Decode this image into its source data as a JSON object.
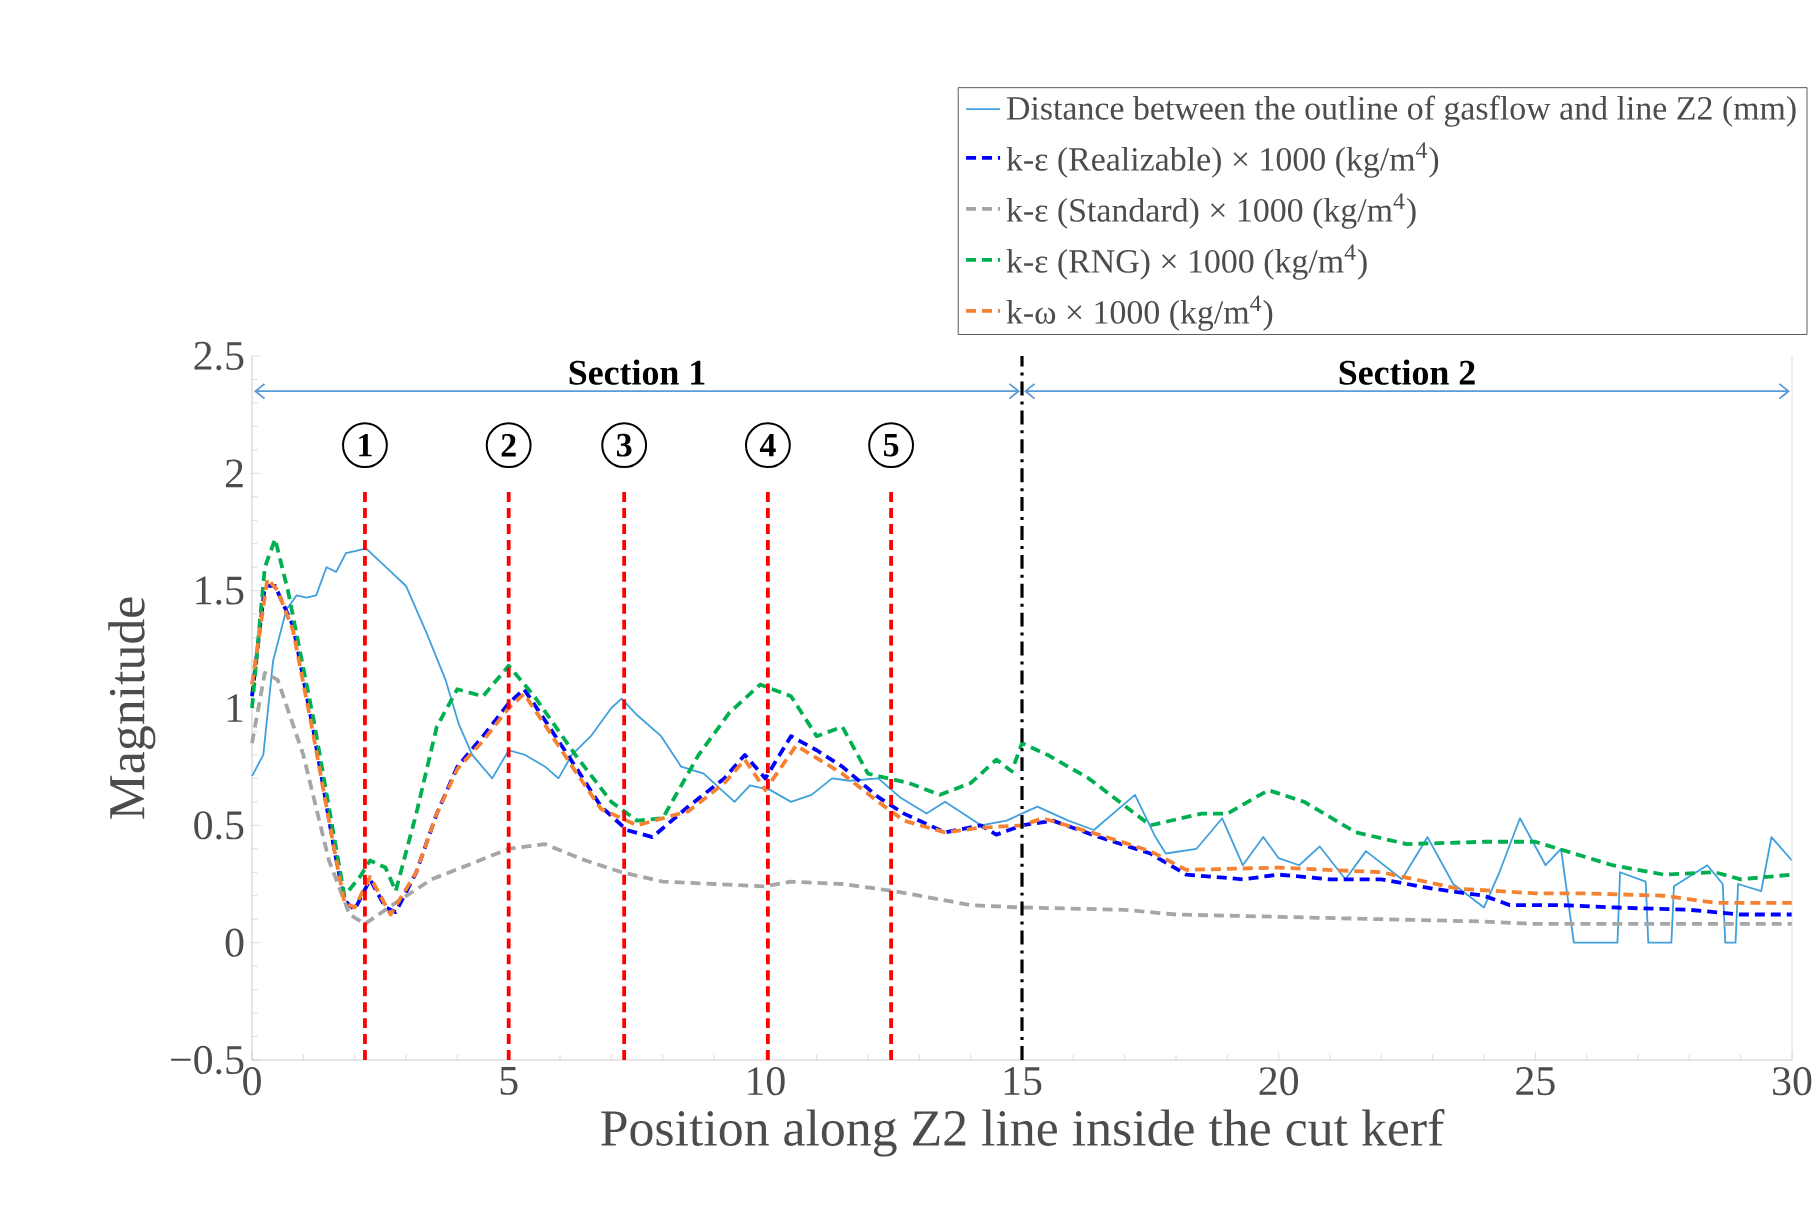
{
  "chart_data": {
    "type": "line",
    "xlabel": "Position along Z2 line inside the cut kerf",
    "ylabel": "Magnitude",
    "xlim": [
      0,
      30
    ],
    "ylim": [
      -0.5,
      2.5
    ],
    "xticks": [
      0,
      5,
      10,
      15,
      20,
      25,
      30
    ],
    "yticks": [
      {
        "value": -0.5,
        "label": "−0.5"
      },
      0,
      0.5,
      1,
      1.5,
      2,
      2.5
    ],
    "legend": "top right",
    "series": [
      {
        "name": "Distance between the outline of gasflow and line Z2 (mm)",
        "color": "#3fa0dc",
        "line_style": "solid",
        "x": [
          0,
          0.22,
          0.41,
          0.67,
          0.87,
          1.06,
          1.25,
          1.45,
          1.64,
          1.83,
          2.03,
          2.22,
          2.61,
          3.0,
          3.4,
          3.77,
          4.03,
          4.29,
          4.68,
          5.0,
          5.32,
          5.71,
          5.97,
          6.23,
          6.6,
          7.0,
          7.2,
          7.5,
          7.97,
          8.36,
          8.8,
          9.4,
          9.7,
          10.1,
          10.5,
          10.9,
          11.3,
          11.65,
          12.2,
          12.62,
          13.14,
          13.5,
          14.2,
          14.7,
          15.3,
          15.9,
          16.4,
          17.2,
          17.6,
          17.8,
          18.4,
          18.9,
          19.3,
          19.7,
          20.0,
          20.4,
          20.8,
          21.3,
          21.7,
          22.4,
          22.9,
          23.4,
          24.0,
          24.3,
          24.7,
          25.2,
          25.5,
          25.75,
          26.6,
          26.65,
          27.15,
          27.2,
          27.65,
          27.7,
          28.35,
          28.65,
          28.7,
          28.9,
          28.95,
          29.4,
          29.6,
          30
        ],
        "values": [
          0.71,
          0.8,
          1.2,
          1.42,
          1.48,
          1.47,
          1.48,
          1.6,
          1.58,
          1.66,
          1.67,
          1.68,
          1.6,
          1.52,
          1.32,
          1.12,
          0.93,
          0.8,
          0.7,
          0.82,
          0.8,
          0.75,
          0.7,
          0.8,
          0.88,
          1.0,
          1.04,
          0.97,
          0.88,
          0.75,
          0.72,
          0.6,
          0.67,
          0.65,
          0.6,
          0.63,
          0.7,
          0.69,
          0.7,
          0.62,
          0.55,
          0.6,
          0.5,
          0.52,
          0.58,
          0.52,
          0.48,
          0.63,
          0.45,
          0.38,
          0.4,
          0.53,
          0.33,
          0.45,
          0.36,
          0.33,
          0.41,
          0.27,
          0.39,
          0.27,
          0.45,
          0.25,
          0.15,
          0.3,
          0.53,
          0.33,
          0.4,
          0.0,
          0.0,
          0.3,
          0.26,
          0.0,
          0.0,
          0.24,
          0.33,
          0.25,
          0.0,
          0.0,
          0.25,
          0.22,
          0.45,
          0.35
        ]
      },
      {
        "name": "k-ε (Realizable) × 1000 (kg/m$^{4}$)",
        "color": "#0000ff",
        "line_style": "dashed",
        "x": [
          0,
          0.25,
          0.45,
          0.8,
          1.2,
          1.6,
          1.8,
          2.0,
          2.3,
          2.6,
          2.8,
          3.2,
          3.6,
          4.0,
          4.5,
          5.0,
          5.3,
          5.7,
          6.3,
          6.8,
          7.3,
          7.8,
          8.5,
          9.2,
          9.6,
          10.0,
          10.5,
          11.0,
          11.5,
          12.2,
          12.7,
          13.2,
          13.5,
          14.2,
          14.5,
          15,
          15.6,
          16.5,
          17.5,
          18.2,
          19.3,
          20,
          21,
          22,
          23,
          24,
          24.5,
          25.5,
          26.5,
          28,
          29,
          30
        ],
        "values": [
          1.05,
          1.52,
          1.52,
          1.35,
          0.9,
          0.4,
          0.18,
          0.14,
          0.27,
          0.15,
          0.13,
          0.3,
          0.55,
          0.75,
          0.88,
          1.02,
          1.08,
          0.95,
          0.75,
          0.58,
          0.48,
          0.45,
          0.58,
          0.7,
          0.8,
          0.7,
          0.88,
          0.82,
          0.75,
          0.62,
          0.55,
          0.5,
          0.47,
          0.5,
          0.46,
          0.5,
          0.52,
          0.45,
          0.38,
          0.29,
          0.27,
          0.29,
          0.27,
          0.27,
          0.23,
          0.2,
          0.16,
          0.16,
          0.15,
          0.14,
          0.12,
          0.12
        ]
      },
      {
        "name": "k-ε (Standard) × 1000 (kg/m$^{4}$)",
        "color": "#a6a6a6",
        "line_style": "dashed",
        "x": [
          0,
          0.25,
          0.5,
          1.0,
          1.5,
          1.9,
          2.2,
          2.8,
          3.5,
          4.2,
          5.0,
          5.7,
          6.5,
          7.2,
          8.0,
          9.0,
          10,
          10.5,
          11.5,
          12.5,
          13,
          14,
          15,
          17,
          18,
          20,
          22,
          24,
          25,
          30
        ],
        "values": [
          0.85,
          1.15,
          1.12,
          0.8,
          0.35,
          0.12,
          0.08,
          0.17,
          0.27,
          0.33,
          0.4,
          0.42,
          0.35,
          0.3,
          0.26,
          0.25,
          0.24,
          0.26,
          0.25,
          0.22,
          0.2,
          0.16,
          0.15,
          0.14,
          0.12,
          0.11,
          0.1,
          0.09,
          0.08,
          0.08
        ]
      },
      {
        "name": "k-ε (RNG) × 1000 (kg/m$^{4}$)",
        "color": "#00b050",
        "line_style": "dashed",
        "x": [
          0,
          0.25,
          0.45,
          0.7,
          1.2,
          1.6,
          1.8,
          2.1,
          2.3,
          2.6,
          2.8,
          3.2,
          3.6,
          4.0,
          4.5,
          5.0,
          5.5,
          6.3,
          7.0,
          7.5,
          8.0,
          8.7,
          9.3,
          9.9,
          10.5,
          11.0,
          11.5,
          12.0,
          12.8,
          13.4,
          14.0,
          14.5,
          14.8,
          15.0,
          15.5,
          16.3,
          17.5,
          18.5,
          19.0,
          19.8,
          20.5,
          21.5,
          22.5,
          24,
          25,
          26.5,
          27.5,
          28.5,
          29,
          30
        ],
        "values": [
          1.0,
          1.6,
          1.72,
          1.5,
          0.95,
          0.45,
          0.2,
          0.28,
          0.35,
          0.32,
          0.22,
          0.55,
          0.92,
          1.08,
          1.05,
          1.18,
          1.05,
          0.8,
          0.6,
          0.52,
          0.53,
          0.8,
          0.98,
          1.1,
          1.05,
          0.88,
          0.92,
          0.72,
          0.68,
          0.63,
          0.68,
          0.78,
          0.73,
          0.85,
          0.8,
          0.7,
          0.5,
          0.55,
          0.55,
          0.65,
          0.6,
          0.47,
          0.42,
          0.43,
          0.43,
          0.33,
          0.29,
          0.3,
          0.27,
          0.29
        ]
      },
      {
        "name": "k-ω × 1000 (kg/m$^{4}$)",
        "color": "#f58232",
        "line_style": "dashed",
        "x": [
          0,
          0.3,
          0.5,
          0.8,
          1.2,
          1.6,
          1.8,
          2.0,
          2.3,
          2.7,
          3.2,
          3.6,
          4.0,
          4.5,
          5.0,
          5.3,
          5.7,
          6.3,
          6.8,
          7.5,
          8.5,
          9.2,
          9.6,
          10.0,
          10.6,
          11.5,
          12.2,
          12.7,
          13.5,
          14.2,
          15,
          15.4,
          16.5,
          17.5,
          18.2,
          20,
          22,
          23.5,
          25,
          26,
          27.5,
          28.5,
          30
        ],
        "values": [
          1.1,
          1.55,
          1.5,
          1.33,
          0.88,
          0.4,
          0.17,
          0.15,
          0.28,
          0.12,
          0.3,
          0.55,
          0.74,
          0.86,
          1.0,
          1.06,
          0.93,
          0.73,
          0.57,
          0.5,
          0.56,
          0.68,
          0.78,
          0.65,
          0.84,
          0.72,
          0.6,
          0.52,
          0.47,
          0.49,
          0.5,
          0.53,
          0.46,
          0.39,
          0.31,
          0.32,
          0.3,
          0.23,
          0.21,
          0.21,
          0.2,
          0.17,
          0.17
        ]
      }
    ],
    "ref_lines": [
      {
        "axis": "x",
        "value": 2.2,
        "color": "#ff0000",
        "line_style": "dashed"
      },
      {
        "axis": "x",
        "value": 5.0,
        "color": "#ff0000",
        "line_style": "dashed"
      },
      {
        "axis": "x",
        "value": 7.25,
        "color": "#ff0000",
        "line_style": "dashed"
      },
      {
        "axis": "x",
        "value": 10.05,
        "color": "#ff0000",
        "line_style": "dashed"
      },
      {
        "axis": "x",
        "value": 12.45,
        "color": "#ff0000",
        "line_style": "dashed"
      },
      {
        "axis": "x",
        "value": 15,
        "color": "#000000",
        "line_style": "dashdot"
      }
    ],
    "annotations": [
      {
        "text": "1",
        "x": 2.2,
        "y": 2.12
      },
      {
        "text": "2",
        "x": 5.0,
        "y": 2.12
      },
      {
        "text": "3",
        "x": 7.25,
        "y": 2.12
      },
      {
        "text": "4",
        "x": 10.05,
        "y": 2.12
      },
      {
        "text": "5",
        "x": 12.45,
        "y": 2.12
      },
      "Section 1",
      "Section 2"
    ]
  }
}
